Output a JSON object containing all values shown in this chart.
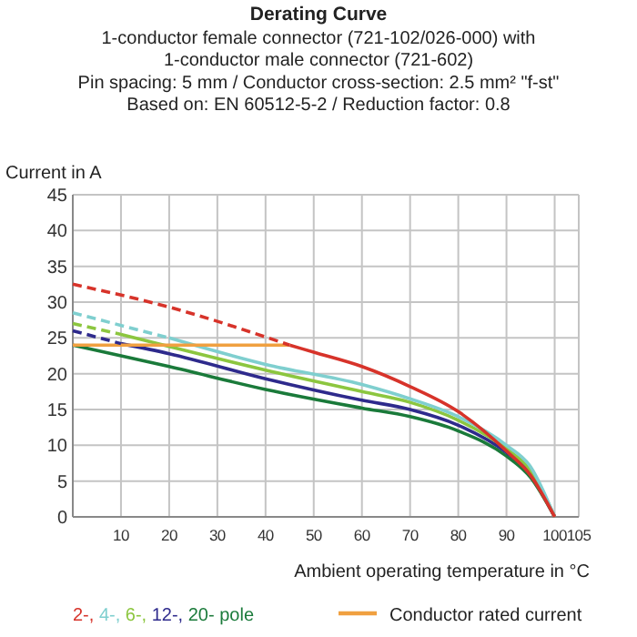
{
  "chart_data": {
    "type": "line",
    "title": "Derating Curve",
    "subtitle": "1-conductor female connector (721-102/026-000) with\n1-conductor male connector (721-602)\nPin spacing: 5 mm / Conductor cross-section: 2.5 mm² \"f-st\"\nBased on: EN 60512-5-2 / Reduction factor: 0.8",
    "xlabel": "Ambient operating temperature in °C",
    "ylabel": "Current in A",
    "xlim": [
      0,
      105
    ],
    "ylim": [
      0,
      45
    ],
    "xticks": [
      10,
      20,
      30,
      40,
      50,
      60,
      70,
      80,
      90,
      100,
      105
    ],
    "yticks": [
      0,
      5,
      10,
      15,
      20,
      25,
      30,
      35,
      40,
      45
    ],
    "grid": true,
    "legend": "bottom",
    "line_style": "solid",
    "series": [
      {
        "color": "#d7332a",
        "line_style": "dashed",
        "x": [
          0,
          20,
          45
        ],
        "values": [
          32.5,
          29.3,
          24
        ]
      },
      {
        "color": "#7fcfcf",
        "line_style": "dashed",
        "x": [
          0,
          20
        ],
        "values": [
          28.5,
          25
        ]
      },
      {
        "color": "#8cc63f",
        "line_style": "dashed",
        "x": [
          0,
          10
        ],
        "values": [
          27,
          25.5
        ]
      },
      {
        "color": "#2e2a8c",
        "line_style": "dashed",
        "x": [
          0,
          10
        ],
        "values": [
          26,
          24.2
        ]
      },
      {
        "name": "Conductor rated current",
        "color": "#f0a040",
        "x": [
          0,
          45
        ],
        "values": [
          24,
          24
        ]
      },
      {
        "name": "2-,",
        "color": "#d7332a",
        "x": [
          45,
          50,
          60,
          70,
          80,
          90,
          95,
          100
        ],
        "values": [
          24,
          23,
          21,
          18.2,
          14.7,
          9.2,
          5.8,
          0
        ]
      },
      {
        "name": "4-,",
        "color": "#7fcfcf",
        "x": [
          20,
          40,
          60,
          70,
          80,
          90,
          95,
          100
        ],
        "values": [
          25,
          21.3,
          18.5,
          16.5,
          14,
          10,
          7,
          0
        ]
      },
      {
        "name": "6-,",
        "color": "#8cc63f",
        "x": [
          10,
          20,
          40,
          60,
          70,
          80,
          90,
          95,
          100
        ],
        "values": [
          25.5,
          23.8,
          20.5,
          17.5,
          16,
          13.5,
          9.5,
          6.5,
          0
        ]
      },
      {
        "name": "12-,",
        "color": "#2e2a8c",
        "x": [
          10,
          20,
          40,
          60,
          70,
          80,
          90,
          95,
          100
        ],
        "values": [
          24.2,
          22.8,
          19.3,
          16.3,
          15,
          12.8,
          9,
          6,
          0
        ]
      },
      {
        "name": "20- pole",
        "color": "#1a7a3a",
        "x": [
          0,
          20,
          40,
          60,
          70,
          80,
          90,
          95,
          100
        ],
        "values": [
          24,
          21,
          17.8,
          15.2,
          14,
          12,
          8.5,
          5.5,
          0
        ]
      }
    ]
  }
}
